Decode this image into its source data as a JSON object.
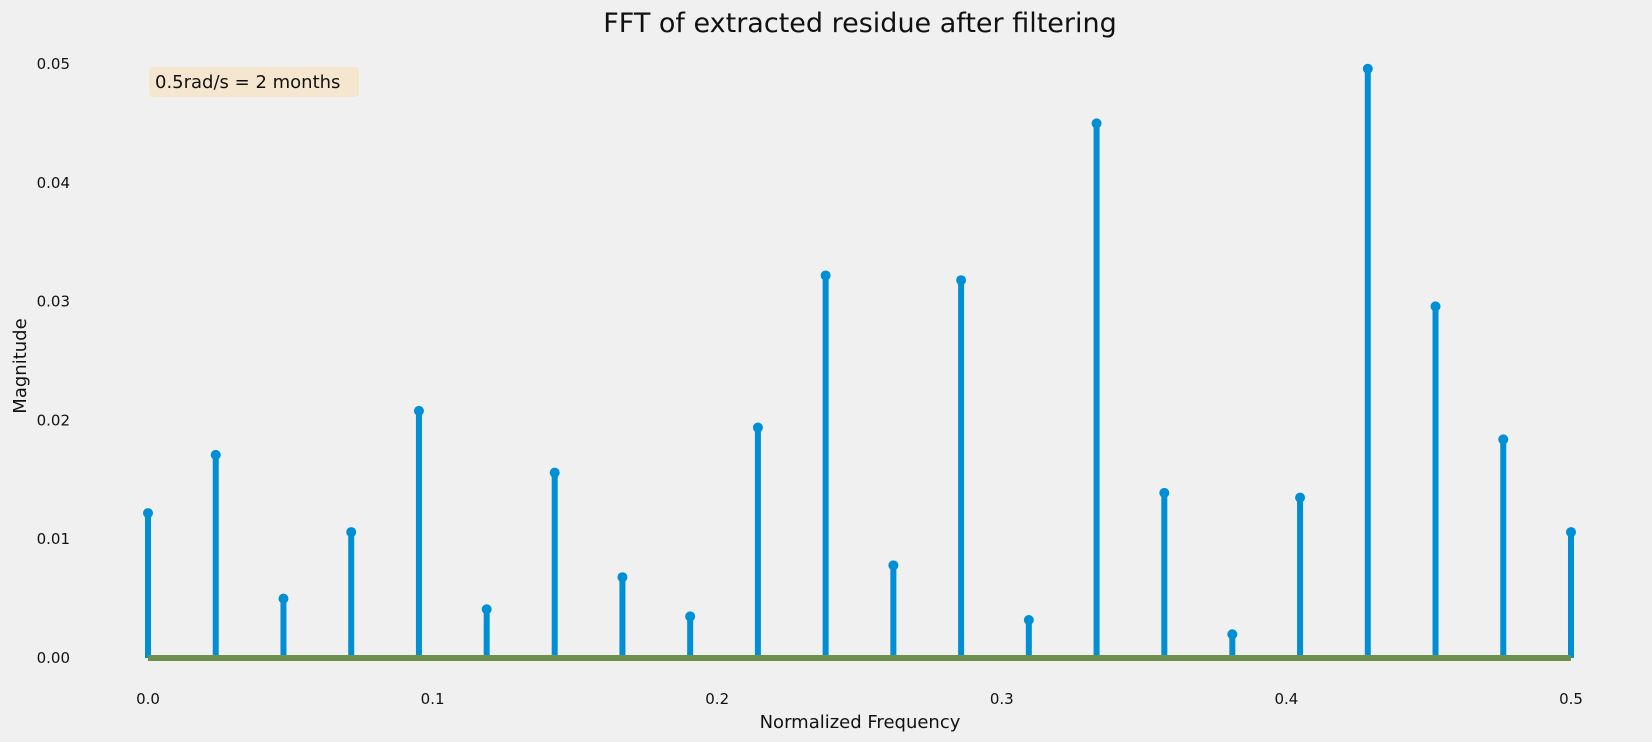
{
  "chart_data": {
    "type": "stem",
    "title": "FFT of extracted residue after filtering",
    "xlabel": "Normalized Frequency",
    "ylabel": "Magnitude",
    "xlim": [
      0,
      0.5
    ],
    "ylim": [
      0,
      0.05
    ],
    "xticks": [
      0.0,
      0.1,
      0.2,
      0.3,
      0.4,
      0.5
    ],
    "xtick_labels": [
      "0.0",
      "0.1",
      "0.2",
      "0.3",
      "0.4",
      "0.5"
    ],
    "yticks": [
      0.0,
      0.01,
      0.02,
      0.03,
      0.04,
      0.05
    ],
    "ytick_labels": [
      "0.00",
      "0.01",
      "0.02",
      "0.03",
      "0.04",
      "0.05"
    ],
    "grid": false,
    "annotation": "0.5rad/s = 2 months",
    "x": [
      0.0,
      0.0238,
      0.0476,
      0.0714,
      0.0952,
      0.119,
      0.1429,
      0.1667,
      0.1905,
      0.2143,
      0.2381,
      0.2619,
      0.2857,
      0.3095,
      0.3333,
      0.3571,
      0.381,
      0.4048,
      0.4286,
      0.4524,
      0.4762,
      0.5
    ],
    "values": [
      0.0122,
      0.0171,
      0.005,
      0.0106,
      0.0208,
      0.0041,
      0.0156,
      0.0068,
      0.0035,
      0.0194,
      0.0322,
      0.0078,
      0.0318,
      0.0032,
      0.045,
      0.0139,
      0.002,
      0.0135,
      0.0496,
      0.0296,
      0.0184,
      0.0106
    ],
    "colors": {
      "stem": "#008fd5",
      "baseline": "#6d904f",
      "annotation_bg": "#f5e6d0",
      "background": "#f0f0f0"
    }
  }
}
